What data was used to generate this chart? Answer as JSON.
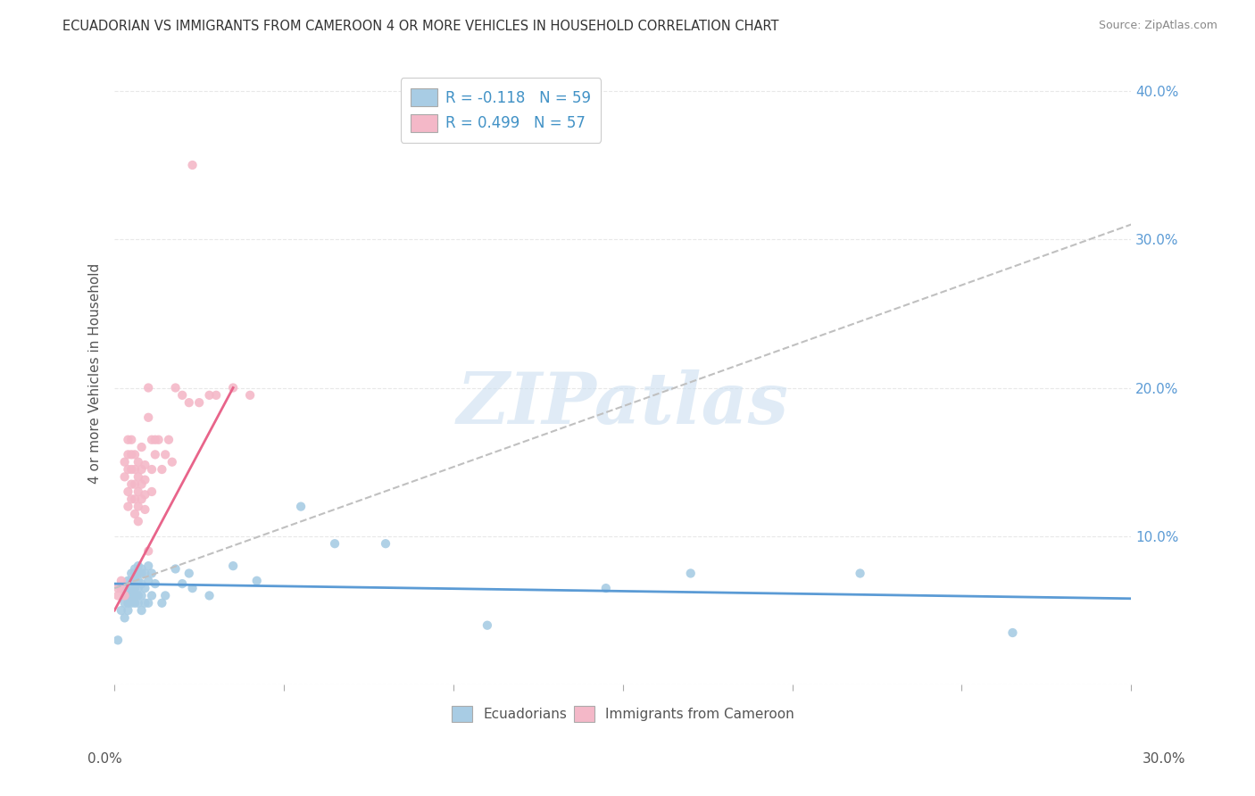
{
  "title": "ECUADORIAN VS IMMIGRANTS FROM CAMEROON 4 OR MORE VEHICLES IN HOUSEHOLD CORRELATION CHART",
  "source": "Source: ZipAtlas.com",
  "ylabel": "4 or more Vehicles in Household",
  "xlim": [
    0.0,
    0.3
  ],
  "ylim": [
    0.0,
    0.42
  ],
  "blue_color": "#a8cce4",
  "pink_color": "#f4b8c8",
  "blue_line_color": "#5b9bd5",
  "pink_line_color": "#e8648a",
  "dashed_line_color": "#c0c0c0",
  "watermark_text": "ZIPatlas",
  "blue_scatter_x": [
    0.001,
    0.002,
    0.002,
    0.003,
    0.003,
    0.003,
    0.004,
    0.004,
    0.004,
    0.004,
    0.004,
    0.005,
    0.005,
    0.005,
    0.005,
    0.005,
    0.006,
    0.006,
    0.006,
    0.006,
    0.006,
    0.006,
    0.007,
    0.007,
    0.007,
    0.007,
    0.007,
    0.007,
    0.008,
    0.008,
    0.008,
    0.008,
    0.008,
    0.009,
    0.009,
    0.009,
    0.01,
    0.01,
    0.01,
    0.011,
    0.011,
    0.012,
    0.014,
    0.015,
    0.018,
    0.02,
    0.022,
    0.023,
    0.028,
    0.035,
    0.042,
    0.055,
    0.065,
    0.08,
    0.11,
    0.145,
    0.17,
    0.22,
    0.265
  ],
  "blue_scatter_y": [
    0.03,
    0.05,
    0.065,
    0.06,
    0.055,
    0.045,
    0.07,
    0.065,
    0.06,
    0.055,
    0.05,
    0.075,
    0.07,
    0.065,
    0.06,
    0.055,
    0.078,
    0.075,
    0.07,
    0.065,
    0.06,
    0.055,
    0.08,
    0.075,
    0.07,
    0.065,
    0.06,
    0.055,
    0.078,
    0.075,
    0.068,
    0.06,
    0.05,
    0.075,
    0.065,
    0.055,
    0.08,
    0.07,
    0.055,
    0.075,
    0.06,
    0.068,
    0.055,
    0.06,
    0.078,
    0.068,
    0.075,
    0.065,
    0.06,
    0.08,
    0.07,
    0.12,
    0.095,
    0.095,
    0.04,
    0.065,
    0.075,
    0.075,
    0.035
  ],
  "pink_scatter_x": [
    0.001,
    0.001,
    0.002,
    0.002,
    0.003,
    0.003,
    0.003,
    0.004,
    0.004,
    0.004,
    0.004,
    0.004,
    0.005,
    0.005,
    0.005,
    0.005,
    0.005,
    0.006,
    0.006,
    0.006,
    0.006,
    0.006,
    0.007,
    0.007,
    0.007,
    0.007,
    0.007,
    0.008,
    0.008,
    0.008,
    0.008,
    0.009,
    0.009,
    0.009,
    0.009,
    0.01,
    0.01,
    0.01,
    0.011,
    0.011,
    0.011,
    0.012,
    0.012,
    0.013,
    0.014,
    0.015,
    0.016,
    0.017,
    0.018,
    0.02,
    0.022,
    0.023,
    0.025,
    0.028,
    0.03,
    0.035,
    0.04
  ],
  "pink_scatter_y": [
    0.065,
    0.06,
    0.07,
    0.065,
    0.15,
    0.14,
    0.06,
    0.165,
    0.155,
    0.145,
    0.13,
    0.12,
    0.165,
    0.155,
    0.145,
    0.135,
    0.125,
    0.155,
    0.145,
    0.135,
    0.125,
    0.115,
    0.15,
    0.14,
    0.13,
    0.12,
    0.11,
    0.16,
    0.145,
    0.135,
    0.125,
    0.148,
    0.138,
    0.128,
    0.118,
    0.2,
    0.18,
    0.09,
    0.165,
    0.145,
    0.13,
    0.165,
    0.155,
    0.165,
    0.145,
    0.155,
    0.165,
    0.15,
    0.2,
    0.195,
    0.19,
    0.35,
    0.19,
    0.195,
    0.195,
    0.2,
    0.195
  ],
  "blue_trend_x": [
    0.0,
    0.3
  ],
  "blue_trend_y": [
    0.068,
    0.058
  ],
  "pink_trend_x": [
    0.0,
    0.035
  ],
  "pink_trend_y": [
    0.05,
    0.2
  ],
  "dashed_trend_x": [
    0.0,
    0.3
  ],
  "dashed_trend_y": [
    0.065,
    0.31
  ],
  "background_color": "#ffffff",
  "grid_color": "#e8e8e8"
}
